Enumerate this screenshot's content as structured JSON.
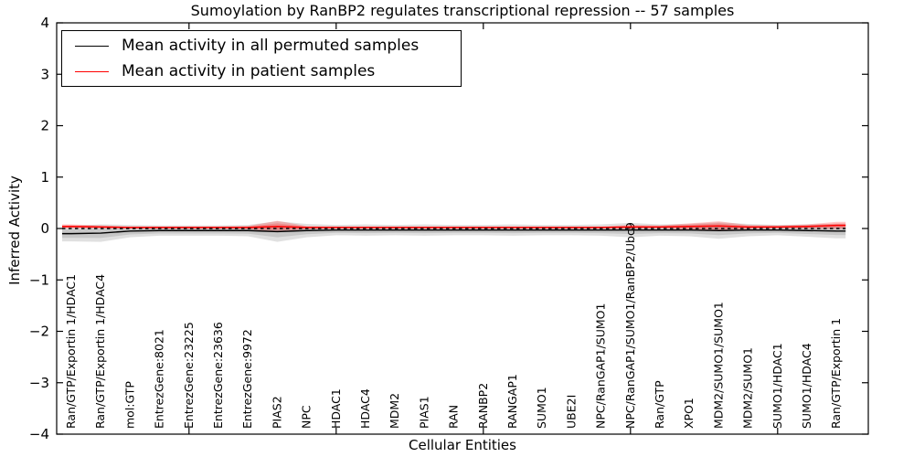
{
  "figure": {
    "background": "#ffffff"
  },
  "chart_data": {
    "type": "line",
    "title": "Sumoylation by RanBP2 regulates transcriptional repression -- 57 samples",
    "xlabel": "Cellular Entities",
    "ylabel": "Inferred Activity",
    "ylim": [
      -4,
      4
    ],
    "yticks": [
      -4,
      -3,
      -2,
      -1,
      0,
      1,
      2,
      3,
      4
    ],
    "ytick_labels": [
      "−4",
      "−3",
      "−2",
      "−1",
      "0",
      "1",
      "2",
      "3",
      "4"
    ],
    "xtick_entity_indices": [
      4,
      9,
      14,
      19,
      24
    ],
    "grid": false,
    "legend_position": "upper-left",
    "categories": [
      "Ran/GTP/Exportin 1/HDAC1",
      "Ran/GTP/Exportin 1/HDAC4",
      "mol:GTP",
      "EntrezGene:8021",
      "EntrezGene:23225",
      "EntrezGene:23636",
      "EntrezGene:9972",
      "PIAS2",
      "NPC",
      "HDAC1",
      "HDAC4",
      "MDM2",
      "PIAS1",
      "RAN",
      "RANBP2",
      "RANGAP1",
      "SUMO1",
      "UBE2I",
      "NPC/RanGAP1/SUMO1",
      "NPC/RanGAP1/SUMO1/RanBP2/Ubc9",
      "Ran/GTP",
      "XPO1",
      "MDM2/SUMO1/SUMO1",
      "MDM2/SUMO1",
      "SUMO1/HDAC1",
      "SUMO1/HDAC4",
      "Ran/GTP/Exportin 1"
    ],
    "series": [
      {
        "name": "Mean activity in all permuted samples",
        "color": "#000000",
        "style": "solid",
        "values": [
          -0.1,
          -0.09,
          -0.05,
          -0.04,
          -0.04,
          -0.04,
          -0.04,
          -0.06,
          -0.04,
          -0.03,
          -0.03,
          -0.03,
          -0.03,
          -0.03,
          -0.03,
          -0.03,
          -0.03,
          -0.03,
          -0.03,
          -0.03,
          -0.03,
          -0.03,
          -0.04,
          -0.03,
          -0.03,
          -0.04,
          -0.05
        ]
      },
      {
        "name": "Mean activity in patient samples",
        "color": "#ff0000",
        "style": "solid",
        "values": [
          0.04,
          0.03,
          0.02,
          0.02,
          0.02,
          0.02,
          0.02,
          0.04,
          0.02,
          0.02,
          0.02,
          0.02,
          0.02,
          0.02,
          0.02,
          0.02,
          0.02,
          0.02,
          0.02,
          0.03,
          0.03,
          0.04,
          0.05,
          0.03,
          0.03,
          0.04,
          0.06
        ]
      }
    ],
    "bands": [
      {
        "name": "permuted-sample-spread",
        "color": "#000000",
        "opacity": 0.12,
        "center_series": 0,
        "halfwidths": [
          0.15,
          0.17,
          0.12,
          0.1,
          0.1,
          0.1,
          0.11,
          0.2,
          0.13,
          0.1,
          0.11,
          0.1,
          0.11,
          0.1,
          0.1,
          0.11,
          0.1,
          0.1,
          0.11,
          0.14,
          0.11,
          0.12,
          0.16,
          0.12,
          0.1,
          0.12,
          0.14
        ]
      },
      {
        "name": "patient-sample-spread",
        "color": "#ff0000",
        "opacity": 0.22,
        "center_series": 1,
        "halfwidths": [
          0.04,
          0.03,
          0.02,
          0.02,
          0.02,
          0.02,
          0.03,
          0.11,
          0.03,
          0.02,
          0.02,
          0.02,
          0.02,
          0.02,
          0.02,
          0.02,
          0.02,
          0.02,
          0.02,
          0.04,
          0.03,
          0.06,
          0.09,
          0.04,
          0.03,
          0.04,
          0.07
        ]
      }
    ],
    "reference_line": {
      "y": 0,
      "color": "#000000",
      "style": "dashed"
    }
  },
  "legend": {
    "entries": [
      {
        "label": "Mean activity in all permuted samples",
        "color": "#000000"
      },
      {
        "label": "Mean activity in patient samples",
        "color": "#ff0000"
      }
    ]
  }
}
